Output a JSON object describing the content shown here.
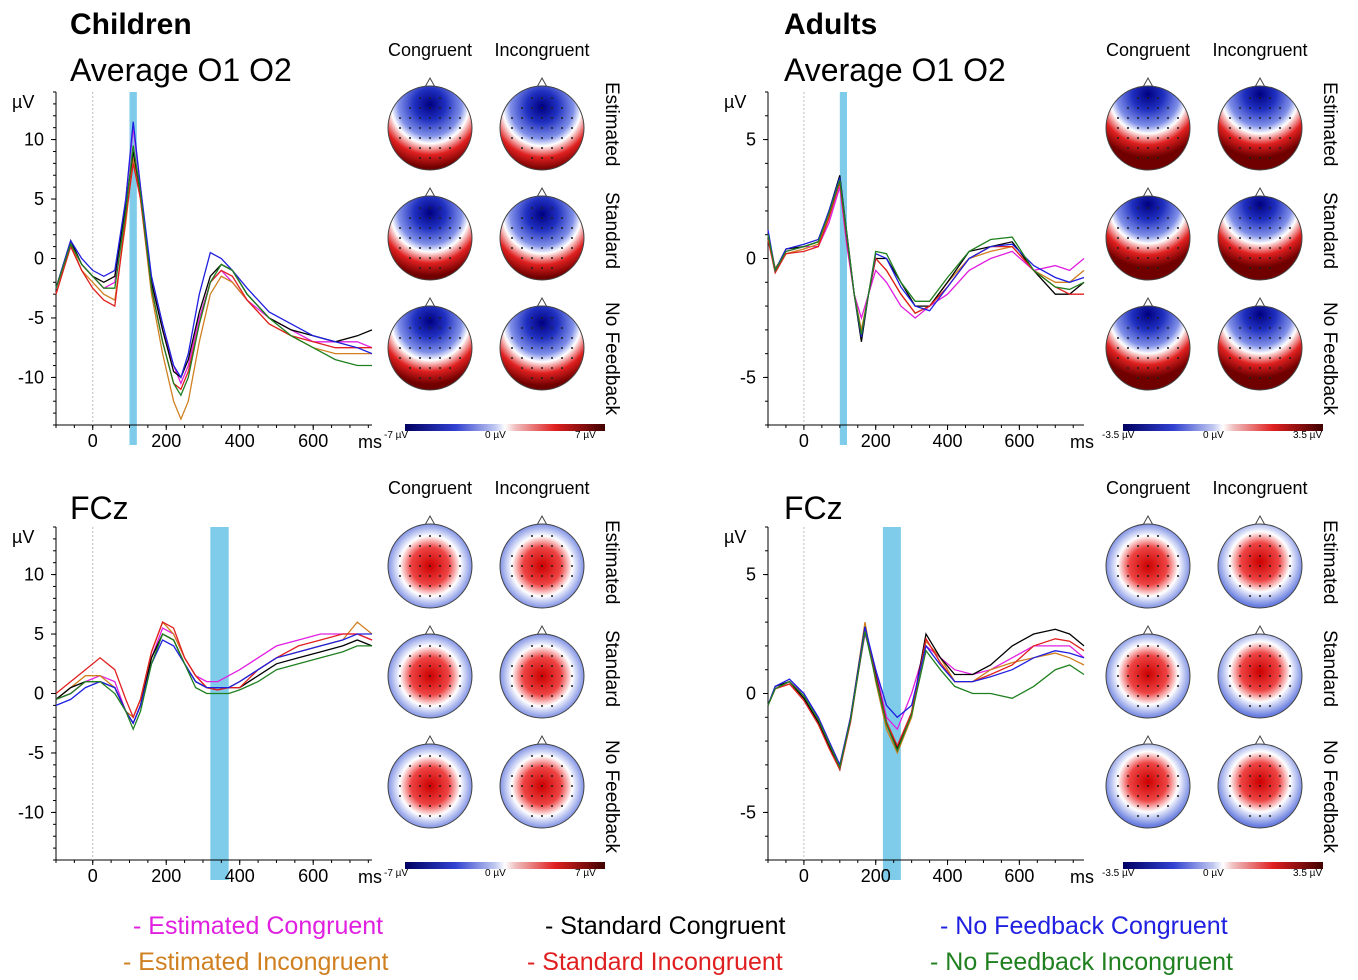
{
  "groups": {
    "children": "Children",
    "adults": "Adults"
  },
  "colors": {
    "estimated_congruent": "#e020e0",
    "estimated_incongruent": "#d08020",
    "standard_congruent": "#000000",
    "standard_incongruent": "#e02020",
    "nofeedback_congruent": "#2020e0",
    "nofeedback_incongruent": "#208020",
    "highlight": "#7ecbea"
  },
  "topo": {
    "col_headers": [
      "Congruent",
      "Incongruent"
    ],
    "row_labels": [
      "Estimated",
      "Standard",
      "No Feedback"
    ],
    "colorbar_children": {
      "min": "-7 µV",
      "mid": "0 µV",
      "max": "7 µV"
    },
    "colorbar_adults": {
      "min": "-3.5 µV",
      "mid": "0 µV",
      "max": "3.5 µV"
    }
  },
  "legend": [
    {
      "label": "- Estimated Congruent",
      "color": "#e020e0"
    },
    {
      "label": "- Estimated Incongruent",
      "color": "#d08020"
    },
    {
      "label": "- Standard Congruent",
      "color": "#000000"
    },
    {
      "label": "- Standard Incongruent",
      "color": "#e02020"
    },
    {
      "label": "- No Feedback Congruent",
      "color": "#2020e0"
    },
    {
      "label": "- No Feedback Incongruent",
      "color": "#208020"
    }
  ],
  "chart_data": [
    {
      "type": "line",
      "panel": "children-occipital",
      "title": "Average O1 O2",
      "ylabel": "µV",
      "xlabel": "ms",
      "xlim": [
        -100,
        760
      ],
      "ylim": [
        -14,
        14
      ],
      "yticks": [
        10,
        5,
        0,
        -5,
        -10
      ],
      "xticks": [
        0,
        200,
        400,
        600
      ],
      "highlight": [
        100,
        120
      ],
      "x": [
        -100,
        -60,
        -30,
        0,
        30,
        60,
        90,
        110,
        130,
        160,
        190,
        220,
        240,
        260,
        290,
        320,
        350,
        380,
        420,
        480,
        540,
        600,
        660,
        720,
        760
      ],
      "series": [
        {
          "name": "Estimated Congruent",
          "values": [
            -3,
            1.2,
            -0.5,
            -1.5,
            -2.5,
            -2,
            5,
            11,
            6,
            -2,
            -6,
            -9,
            -10.5,
            -9,
            -5,
            -2,
            -1,
            -2,
            -3.5,
            -5,
            -6,
            -7,
            -7,
            -7,
            -7.5
          ]
        },
        {
          "name": "Estimated Incongruent",
          "values": [
            -3,
            1.2,
            -1,
            -2,
            -3,
            -3.5,
            3,
            8.5,
            5,
            -3,
            -8,
            -12,
            -13.5,
            -12,
            -7,
            -3,
            -1.5,
            -2,
            -3.5,
            -5.5,
            -6.5,
            -7.5,
            -8,
            -8,
            -8
          ]
        },
        {
          "name": "Standard Congruent",
          "values": [
            -2.5,
            1.5,
            -0.5,
            -1.5,
            -2,
            -1.5,
            4.5,
            9,
            5.5,
            -2,
            -6,
            -9.5,
            -10,
            -8.5,
            -4.5,
            -1.5,
            -0.5,
            -1,
            -3,
            -5,
            -6,
            -6.5,
            -7,
            -6.5,
            -6
          ]
        },
        {
          "name": "Standard Incongruent",
          "values": [
            -3,
            1,
            -1,
            -2.5,
            -3.5,
            -4,
            3.5,
            8,
            5,
            -2.5,
            -7,
            -10.5,
            -11,
            -9.5,
            -5.5,
            -2,
            -1,
            -1.5,
            -3.5,
            -5.5,
            -6.5,
            -7,
            -7.5,
            -7.5,
            -7.5
          ]
        },
        {
          "name": "No Feedback Congruent",
          "values": [
            -2.5,
            1.5,
            0,
            -1,
            -1.5,
            -1,
            5,
            11.5,
            6,
            -1.5,
            -5.5,
            -9,
            -10,
            -8,
            -3,
            0.5,
            0,
            -1,
            -2.5,
            -4.5,
            -5.5,
            -6.5,
            -7,
            -7.5,
            -8
          ]
        },
        {
          "name": "No Feedback Incongruent",
          "values": [
            -2.5,
            1.2,
            -0.5,
            -1.5,
            -2.5,
            -2.5,
            4,
            9.5,
            5.5,
            -2.5,
            -7,
            -10.5,
            -11.5,
            -10,
            -5.5,
            -2,
            -0.5,
            -1,
            -3,
            -5,
            -6.5,
            -7.5,
            -8.5,
            -9,
            -9
          ]
        }
      ]
    },
    {
      "type": "line",
      "panel": "adults-occipital",
      "title": "Average O1 O2",
      "ylabel": "µV",
      "xlabel": "ms",
      "xlim": [
        -100,
        780
      ],
      "ylim": [
        -7,
        7
      ],
      "yticks": [
        5,
        0,
        -5
      ],
      "xticks": [
        0,
        200,
        400,
        600
      ],
      "highlight": [
        100,
        120
      ],
      "x": [
        -100,
        -80,
        -50,
        0,
        40,
        70,
        100,
        120,
        140,
        160,
        180,
        200,
        230,
        270,
        310,
        350,
        400,
        460,
        520,
        580,
        640,
        700,
        740,
        780
      ],
      "series": [
        {
          "name": "Estimated Congruent",
          "values": [
            1,
            -0.5,
            0.3,
            0.5,
            0.5,
            1.5,
            3,
            0.5,
            -1.5,
            -2.5,
            -1.5,
            -0.5,
            -1,
            -2,
            -2.5,
            -2,
            -1.5,
            -0.5,
            0,
            0.3,
            -0.5,
            -0.3,
            -0.5,
            0
          ]
        },
        {
          "name": "Estimated Incongruent",
          "values": [
            1,
            -0.4,
            0.2,
            0.4,
            0.6,
            1.8,
            3.3,
            0.8,
            -1.5,
            -3,
            -1.5,
            0,
            -0.5,
            -1.5,
            -2.3,
            -2,
            -1,
            0,
            0.3,
            0.5,
            -0.5,
            -1,
            -1,
            -0.5
          ]
        },
        {
          "name": "Standard Congruent",
          "values": [
            1,
            -0.5,
            0.4,
            0.5,
            0.7,
            2,
            3.5,
            1,
            -1.5,
            -3.5,
            -1.5,
            0,
            0,
            -1,
            -2,
            -2,
            -1,
            0.3,
            0.5,
            0.7,
            -0.5,
            -1.5,
            -1.5,
            -1
          ]
        },
        {
          "name": "Standard Incongruent",
          "values": [
            0.8,
            -0.6,
            0.2,
            0.3,
            0.5,
            1.7,
            3.2,
            0.7,
            -1.5,
            -3.2,
            -1.5,
            0,
            -0.5,
            -1.5,
            -2.3,
            -2,
            -1.2,
            0,
            0.5,
            0.5,
            -0.5,
            -1.2,
            -1.5,
            -1.5
          ]
        },
        {
          "name": "No Feedback Congruent",
          "values": [
            1.2,
            -0.5,
            0.4,
            0.6,
            0.8,
            2,
            3.4,
            0.9,
            -1.5,
            -3.3,
            -1.5,
            0.2,
            0,
            -1.2,
            -2,
            -2.2,
            -1.2,
            0,
            0.5,
            0.6,
            -0.3,
            -0.8,
            -1,
            -0.8
          ]
        },
        {
          "name": "No Feedback Incongruent",
          "values": [
            1,
            -0.5,
            0.3,
            0.5,
            0.7,
            1.9,
            3.3,
            1,
            -1.5,
            -3.2,
            -1.5,
            0.3,
            0.2,
            -1,
            -1.8,
            -1.8,
            -0.8,
            0.3,
            0.8,
            0.9,
            -0.5,
            -1.2,
            -1.3,
            -1
          ]
        }
      ]
    },
    {
      "type": "line",
      "panel": "children-fcz",
      "title": "FCz",
      "ylabel": "µV",
      "xlabel": "ms",
      "xlim": [
        -100,
        760
      ],
      "ylim": [
        -14,
        14
      ],
      "yticks": [
        10,
        5,
        0,
        -5,
        -10
      ],
      "xticks": [
        0,
        200,
        400,
        600
      ],
      "highlight": [
        320,
        370
      ],
      "x": [
        -100,
        -60,
        -20,
        20,
        60,
        90,
        110,
        130,
        160,
        190,
        220,
        250,
        280,
        310,
        340,
        370,
        400,
        450,
        500,
        560,
        620,
        680,
        720,
        760
      ],
      "series": [
        {
          "name": "Estimated Congruent",
          "values": [
            -0.5,
            0,
            1,
            1.5,
            1,
            -1.5,
            -2.5,
            -1,
            3,
            5.5,
            5,
            3,
            1.5,
            1,
            1,
            1.5,
            2,
            3,
            4,
            4.5,
            5,
            5,
            5,
            4.5
          ]
        },
        {
          "name": "Estimated Incongruent",
          "values": [
            -0.5,
            0.5,
            1.5,
            1.5,
            0.5,
            -1.5,
            -2,
            -0.5,
            3.5,
            6,
            5,
            3,
            1.5,
            0.5,
            0.3,
            0.5,
            1,
            2,
            3,
            3.5,
            4,
            4.5,
            6,
            5
          ]
        },
        {
          "name": "Standard Congruent",
          "values": [
            -0.5,
            0.5,
            1,
            1,
            0.5,
            -1.5,
            -2.5,
            -1,
            3,
            5,
            4.5,
            2.5,
            1,
            0.5,
            0.5,
            0.5,
            0.5,
            1.5,
            2.5,
            3,
            3.5,
            4,
            4.5,
            4
          ]
        },
        {
          "name": "Standard Incongruent",
          "values": [
            0,
            1,
            2,
            3,
            2,
            -0.5,
            -2,
            -0.5,
            3.5,
            6,
            5.5,
            3,
            1.5,
            0.5,
            0.3,
            0.5,
            0.5,
            2,
            3,
            4,
            4.5,
            5,
            5,
            4.5
          ]
        },
        {
          "name": "No Feedback Congruent",
          "values": [
            -1,
            -0.5,
            0.5,
            1,
            0.5,
            -1.5,
            -2.5,
            -1,
            2.5,
            4.5,
            4,
            2.5,
            1,
            0.5,
            0.5,
            0.5,
            1,
            2,
            3,
            3.5,
            4,
            4.5,
            5,
            5
          ]
        },
        {
          "name": "No Feedback Incongruent",
          "values": [
            -0.5,
            0,
            1,
            1,
            0,
            -1.5,
            -3,
            -1.5,
            2.5,
            5,
            4.5,
            2.5,
            0.5,
            0,
            0,
            0,
            0.3,
            1,
            2,
            2.5,
            3,
            3.5,
            4,
            4
          ]
        }
      ]
    },
    {
      "type": "line",
      "panel": "adults-fcz",
      "title": "FCz",
      "ylabel": "µV",
      "xlabel": "ms",
      "xlim": [
        -100,
        780
      ],
      "ylim": [
        -7,
        7
      ],
      "yticks": [
        5,
        0,
        -5
      ],
      "xticks": [
        0,
        200,
        400,
        600
      ],
      "highlight": [
        220,
        270
      ],
      "x": [
        -100,
        -80,
        -40,
        0,
        40,
        70,
        100,
        130,
        170,
        200,
        230,
        260,
        300,
        340,
        380,
        420,
        470,
        520,
        580,
        640,
        700,
        740,
        780
      ],
      "series": [
        {
          "name": "Estimated Congruent",
          "values": [
            -0.5,
            0.2,
            0.5,
            0,
            -1,
            -2,
            -3,
            -1,
            2.5,
            1,
            -1,
            -1.5,
            0,
            2,
            1.5,
            1,
            0.8,
            1,
            1.5,
            2,
            2,
            2,
            1.5
          ]
        },
        {
          "name": "Estimated Incongruent",
          "values": [
            -0.5,
            0.2,
            0.4,
            -0.2,
            -1.2,
            -2.2,
            -3.1,
            -1,
            3,
            0.5,
            -1.5,
            -2.5,
            -1,
            2.2,
            1.5,
            0.5,
            0.5,
            1,
            1.3,
            1.5,
            1.7,
            1.5,
            1.2
          ]
        },
        {
          "name": "Standard Congruent",
          "values": [
            -0.5,
            0.3,
            0.5,
            -0.2,
            -1.2,
            -2.2,
            -3.2,
            -1,
            2.8,
            0.8,
            -1.2,
            -2.3,
            -0.8,
            2.5,
            1.5,
            0.8,
            0.8,
            1.2,
            2,
            2.5,
            2.7,
            2.5,
            2
          ]
        },
        {
          "name": "Standard Incongruent",
          "values": [
            -0.5,
            0.2,
            0.4,
            -0.3,
            -1.3,
            -2.3,
            -3.2,
            -1.2,
            2.7,
            0.7,
            -1.2,
            -2.2,
            -0.8,
            2.3,
            1.3,
            0.5,
            0.5,
            0.8,
            1.2,
            2,
            2.3,
            2.2,
            1.8
          ]
        },
        {
          "name": "No Feedback Congruent",
          "values": [
            -0.5,
            0.3,
            0.6,
            0,
            -1,
            -2,
            -3,
            -1,
            2.8,
            1,
            -0.5,
            -1,
            -0.5,
            2,
            1.2,
            0.5,
            0.5,
            0.7,
            1,
            1.5,
            1.8,
            1.7,
            1.5
          ]
        },
        {
          "name": "No Feedback Incongruent",
          "values": [
            -0.5,
            0.2,
            0.5,
            -0.1,
            -1.1,
            -2.1,
            -3.1,
            -1.1,
            2.6,
            0.6,
            -1.3,
            -2.4,
            -0.9,
            1.8,
            1,
            0.3,
            0,
            0,
            -0.2,
            0.3,
            1,
            1.2,
            0.8
          ]
        }
      ]
    }
  ]
}
